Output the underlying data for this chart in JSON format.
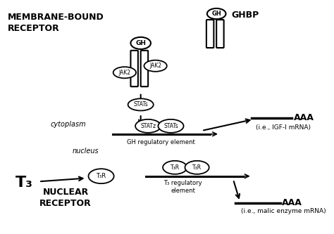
{
  "bg_color": "#ffffff",
  "line_color": "#000000",
  "title_membrane": "MEMBRANE-BOUND\nRECEPTOR",
  "title_nuclear": "NUCLEAR\nRECEPTOR",
  "label_ghbp": "GHBP",
  "label_gh1": "GH",
  "label_gh2": "GH",
  "label_jak2_left": "JAK2",
  "label_jak2_right": "JAK2",
  "label_stats_cyto": "STATs",
  "label_stats1": "STATz",
  "label_stats2": "STATs",
  "label_gh_reg": "GH regulatory element",
  "label_cytoplasm": "cytoplasm",
  "label_nucleus": "nucleus",
  "label_t3r_single": "T₃R",
  "label_t3r_left": "T₃R",
  "label_t3r_right": "T₃R",
  "label_t3_reg": "T₃ regulatory\nelement",
  "label_t3": "T₃",
  "label_aaa1": "AAA",
  "label_aaa2": "AAA",
  "label_igf": "(i.e., IGF-I mRNA)",
  "label_malic": "(i.e., malic enzyme mRNA)",
  "figsize": [
    4.74,
    3.33
  ],
  "dpi": 100
}
